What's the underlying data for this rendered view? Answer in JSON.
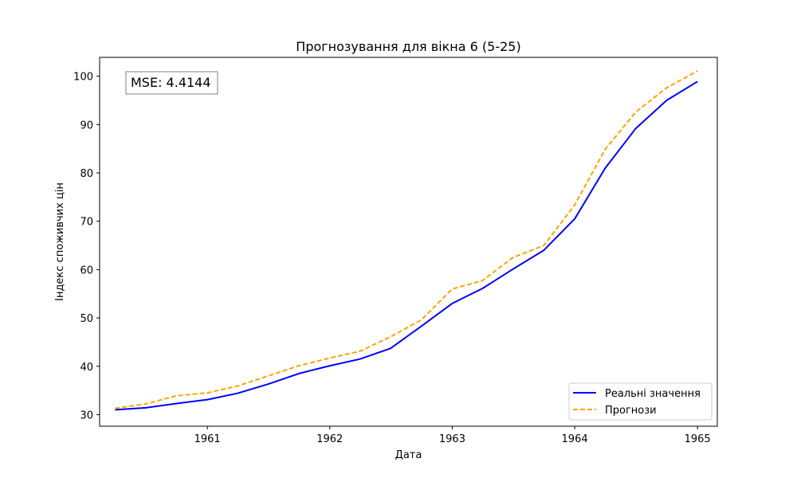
{
  "chart_data": {
    "type": "line",
    "title": "Прогнозування для вікна 6 (5-25)",
    "xlabel": "Дата",
    "ylabel": "Індекс споживчих цін",
    "xlim": [
      "1960-02-15",
      "1965-03-01"
    ],
    "ylim": [
      27.6,
      103.9
    ],
    "x_ticks": [
      "1961",
      "1962",
      "1963",
      "1964",
      "1965"
    ],
    "y_ticks": [
      30,
      40,
      50,
      60,
      70,
      80,
      90,
      100
    ],
    "grid": false,
    "legend_position": "lower-right",
    "annotation": "MSE: 4.4144",
    "x": [
      "1960-04-01",
      "1960-07-01",
      "1960-10-01",
      "1961-01-01",
      "1961-04-01",
      "1961-07-01",
      "1961-10-01",
      "1962-01-01",
      "1962-04-01",
      "1962-07-01",
      "1962-10-01",
      "1963-01-01",
      "1963-04-01",
      "1963-07-01",
      "1963-10-01",
      "1964-01-01",
      "1964-04-01",
      "1964-07-01",
      "1964-10-01",
      "1965-01-01"
    ],
    "series": [
      {
        "name": "Реальні значення",
        "color": "#0000ff",
        "style": "solid",
        "values": [
          31.0,
          31.4,
          32.3,
          33.1,
          34.4,
          36.3,
          38.5,
          40.1,
          41.5,
          43.7,
          48.3,
          53.0,
          56.1,
          60.1,
          64.0,
          70.5,
          81.0,
          89.2,
          95.0,
          98.9
        ]
      },
      {
        "name": "Прогнози",
        "color": "#ffa500",
        "style": "dashed",
        "values": [
          31.3,
          32.2,
          33.9,
          34.5,
          35.9,
          38.0,
          40.1,
          41.7,
          43.1,
          46.1,
          49.6,
          56.0,
          57.7,
          62.5,
          65.0,
          73.4,
          84.9,
          92.6,
          97.6,
          101.1
        ]
      }
    ]
  }
}
